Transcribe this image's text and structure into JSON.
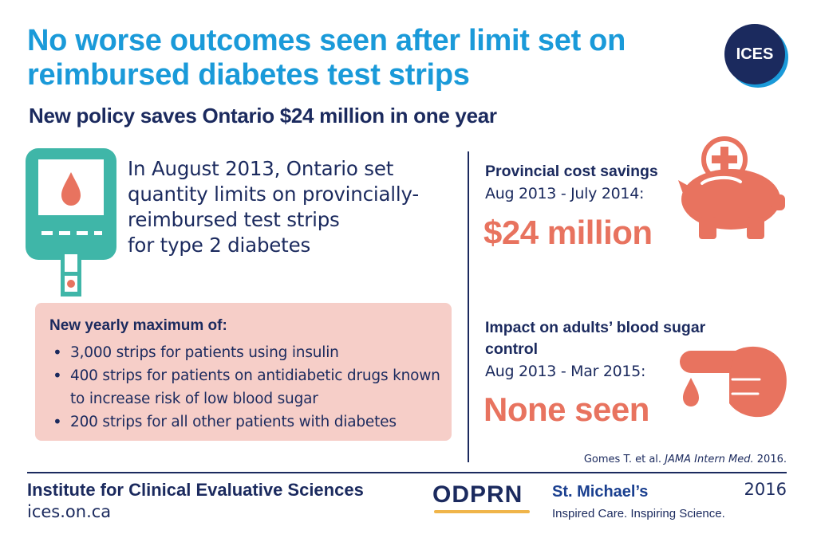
{
  "header": {
    "title": "No worse outcomes seen after limit set on reimbursed diabetes test strips",
    "subtitle": "New policy saves Ontario $24 million in one year",
    "logo": "ICES"
  },
  "intro": {
    "line1": "In August 2013, Ontario set",
    "line2": "quantity limits on provincially-",
    "line3": "reimbursed test strips",
    "line4": "for type 2 diabetes"
  },
  "maximum": {
    "heading": "New yearly maximum of:",
    "items": [
      "3,000 strips for patients using insulin",
      "400 strips for patients on antidiabetic drugs known to increase risk of low blood sugar",
      "200 strips for all other patients with diabetes"
    ]
  },
  "savings": {
    "heading": "Provincial cost savings",
    "period": "Aug 2013 - July 2014:",
    "value": "$24 million"
  },
  "impact": {
    "heading": "Impact on adults’ blood sugar control",
    "period": "Aug 2013 - Mar 2015:",
    "value": "None seen"
  },
  "citation": {
    "authors": "Gomes T. et al.",
    "journal": "JAMA Intern Med.",
    "year": "2016."
  },
  "footer": {
    "org": "Institute for Clinical Evaluative Sciences",
    "url": "ices.on.ca",
    "partner1": "ODPRN",
    "partner2": "St. Michael’s",
    "partner2_tagline": "Inspired Care. Inspiring Science.",
    "year": "2016"
  },
  "colors": {
    "title_blue": "#1a9ad9",
    "navy": "#1b2a5e",
    "coral": "#e8735f",
    "teal": "#3fb6a8",
    "pink_box": "#f6cec8"
  },
  "icons": [
    "glucose-meter-icon",
    "piggy-bank-icon",
    "finger-prick-icon"
  ]
}
